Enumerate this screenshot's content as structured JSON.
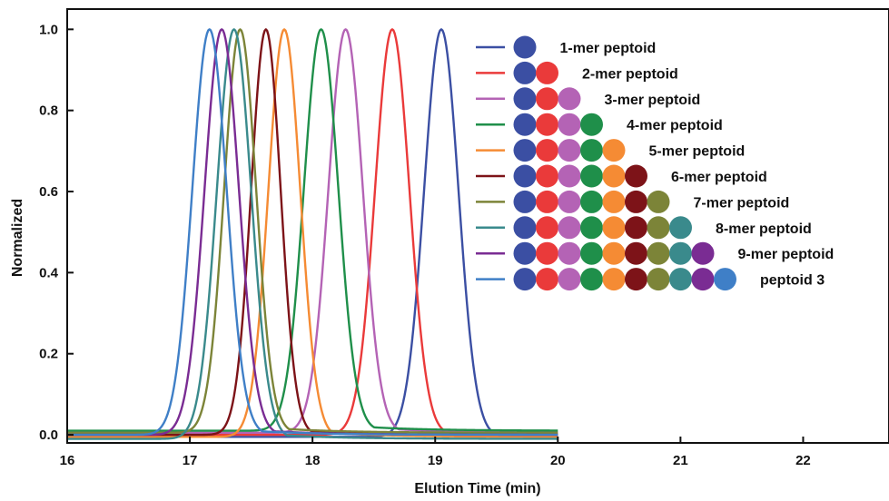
{
  "chart_data": {
    "type": "line",
    "title": "",
    "xlabel": "Elution Time (min)",
    "ylabel": "Normalized",
    "xlim": [
      16,
      22.7
    ],
    "ylim": [
      -0.02,
      1.05
    ],
    "xticks": [
      16,
      17,
      18,
      19,
      20,
      21,
      22
    ],
    "yticks": [
      0.0,
      0.2,
      0.4,
      0.6,
      0.8,
      1.0
    ],
    "xtick_labels": [
      "16",
      "17",
      "18",
      "19",
      "20",
      "21",
      "22"
    ],
    "ytick_labels": [
      "0.0",
      "0.2",
      "0.4",
      "0.6",
      "0.8",
      "1.0"
    ],
    "x_data_range": [
      16,
      20
    ],
    "grid": false,
    "legend_position": "top-right",
    "monomer_colors": [
      "#3b4fa3",
      "#ea3a3a",
      "#b463b5",
      "#1f8f4a",
      "#f58b34",
      "#7d1318",
      "#7c8438",
      "#3a8a8c",
      "#7a2c93",
      "#3f7fc7"
    ],
    "series": [
      {
        "name": "1-mer peptoid",
        "color": "#3b4fa3",
        "peak": 19.05,
        "sigma": 0.14,
        "baseline": -0.005,
        "beads": 1
      },
      {
        "name": "2-mer peptoid",
        "color": "#ea3a3a",
        "peak": 18.65,
        "sigma": 0.14,
        "baseline": 0.0,
        "beads": 2
      },
      {
        "name": "3-mer peptoid",
        "color": "#b463b5",
        "peak": 18.27,
        "sigma": 0.14,
        "baseline": 0.005,
        "beads": 3
      },
      {
        "name": "4-mer peptoid",
        "color": "#1f8f4a",
        "peak": 18.07,
        "sigma": 0.14,
        "baseline": 0.01,
        "beads": 4
      },
      {
        "name": "5-mer peptoid",
        "color": "#f58b34",
        "peak": 17.77,
        "sigma": 0.13,
        "baseline": -0.005,
        "beads": 5
      },
      {
        "name": "6-mer peptoid",
        "color": "#7d1318",
        "peak": 17.62,
        "sigma": 0.12,
        "baseline": 0.0,
        "beads": 6
      },
      {
        "name": "7-mer peptoid",
        "color": "#7c8438",
        "peak": 17.41,
        "sigma": 0.13,
        "baseline": 0.005,
        "beads": 7
      },
      {
        "name": "8-mer peptoid",
        "color": "#3a8a8c",
        "peak": 17.36,
        "sigma": 0.14,
        "baseline": -0.01,
        "beads": 8
      },
      {
        "name": "9-mer peptoid",
        "color": "#7a2c93",
        "peak": 17.26,
        "sigma": 0.14,
        "baseline": 0.0,
        "beads": 9
      },
      {
        "name": "peptoid 3",
        "color": "#3f7fc7",
        "peak": 17.16,
        "sigma": 0.14,
        "baseline": 0.0,
        "beads": 10
      }
    ]
  }
}
